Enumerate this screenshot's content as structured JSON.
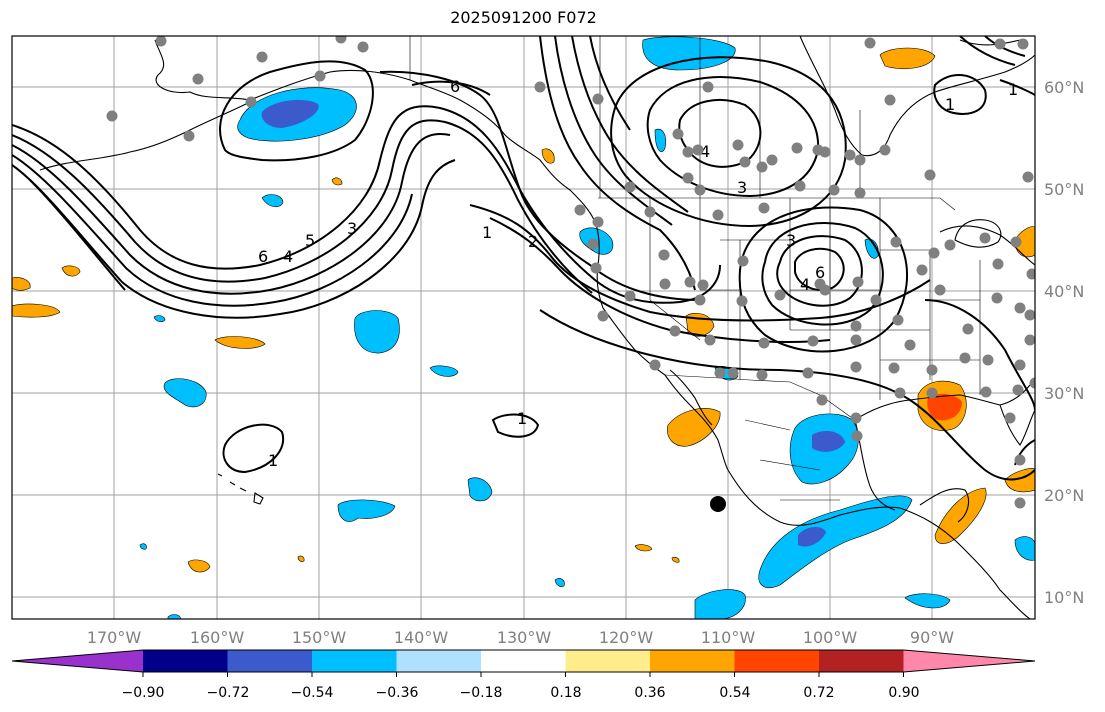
{
  "title": "2025091200 F072",
  "lat_labels": [
    "60°N",
    "50°N",
    "40°N",
    "30°N",
    "20°N",
    "10°N"
  ],
  "lon_labels": [
    "170°W",
    "160°W",
    "150°W",
    "140°W",
    "130°W",
    "120°W",
    "110°W",
    "100°W",
    "90°W"
  ],
  "colorbar": {
    "tick_labels": [
      "−0.90",
      "−0.72",
      "−0.54",
      "−0.36",
      "−0.18",
      "0.18",
      "0.36",
      "0.54",
      "0.72",
      "0.90"
    ],
    "colors": [
      "#9932cc",
      "#00008b",
      "#3b5bcc",
      "#00bfff",
      "#b0e0ff",
      "#ffffff",
      "#ffec8b",
      "#ffa500",
      "#ff4500",
      "#b22222",
      "#ff88aa"
    ]
  },
  "contour_labels": [
    "6",
    "4",
    "5",
    "3",
    "1",
    "2",
    "6",
    "4",
    "3",
    "3",
    "6",
    "4",
    "1",
    "1",
    "1",
    "1"
  ],
  "colors": {
    "grid": "#a0a0a0",
    "station": "#808080",
    "contour": "#000000"
  }
}
